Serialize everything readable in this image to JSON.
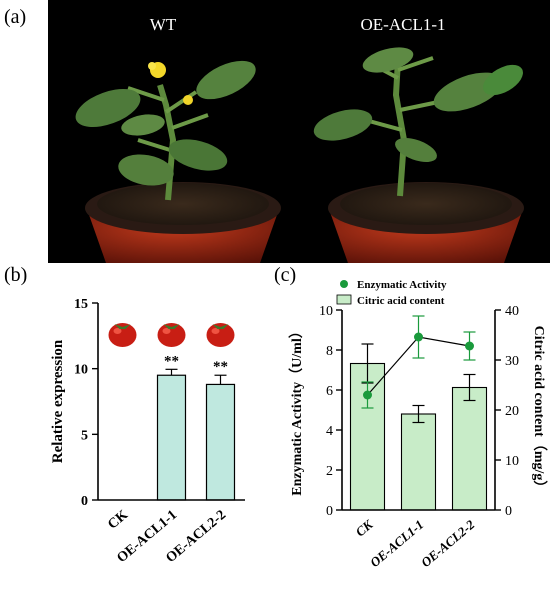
{
  "panels": {
    "a": "(a)",
    "b": "(b)",
    "c": "(c)"
  },
  "photo": {
    "left_label": "WT",
    "right_label": "OE-ACL1-1"
  },
  "chart_data": [
    {
      "type": "bar",
      "categories": [
        "CK",
        "OE-ACL1-1",
        "OE-ACL2-2"
      ],
      "values": [
        0,
        9.5,
        8.8
      ],
      "errors": [
        0,
        0.45,
        0.7
      ],
      "significance": [
        "",
        "**",
        "**"
      ],
      "ylabel": "Relative expression",
      "ylim": [
        0,
        15
      ],
      "yticks": [
        0,
        5,
        10,
        15
      ],
      "bar_color": "#bfe8df",
      "fruit_icons": [
        "tomato-icon",
        "tomato-icon",
        "tomato-icon"
      ]
    },
    {
      "type": "bar",
      "categories": [
        "CK",
        "OE-ACL1-1",
        "OE-ACL2-2"
      ],
      "series": [
        {
          "name": "Citric acid content",
          "type": "bar",
          "axis": "right",
          "values": [
            29.3,
            19.2,
            24.5
          ],
          "errors": [
            3.9,
            1.7,
            2.6
          ],
          "color": "#c8ecc8"
        },
        {
          "name": "Enzymatic Activity",
          "type": "line",
          "axis": "left",
          "values": [
            5.75,
            8.65,
            8.2
          ],
          "errors": [
            0.65,
            1.05,
            0.7
          ],
          "color": "#1a9a3c"
        }
      ],
      "ylabel": "Enzymatic Activity（U/ml）",
      "ylim": [
        0,
        10
      ],
      "yticks": [
        0,
        2,
        4,
        6,
        8,
        10
      ],
      "y2label": "Citric acid content（mg/g）",
      "y2lim": [
        0,
        40
      ],
      "y2ticks": [
        0,
        10,
        20,
        30,
        40
      ],
      "legend_position": "top"
    }
  ]
}
